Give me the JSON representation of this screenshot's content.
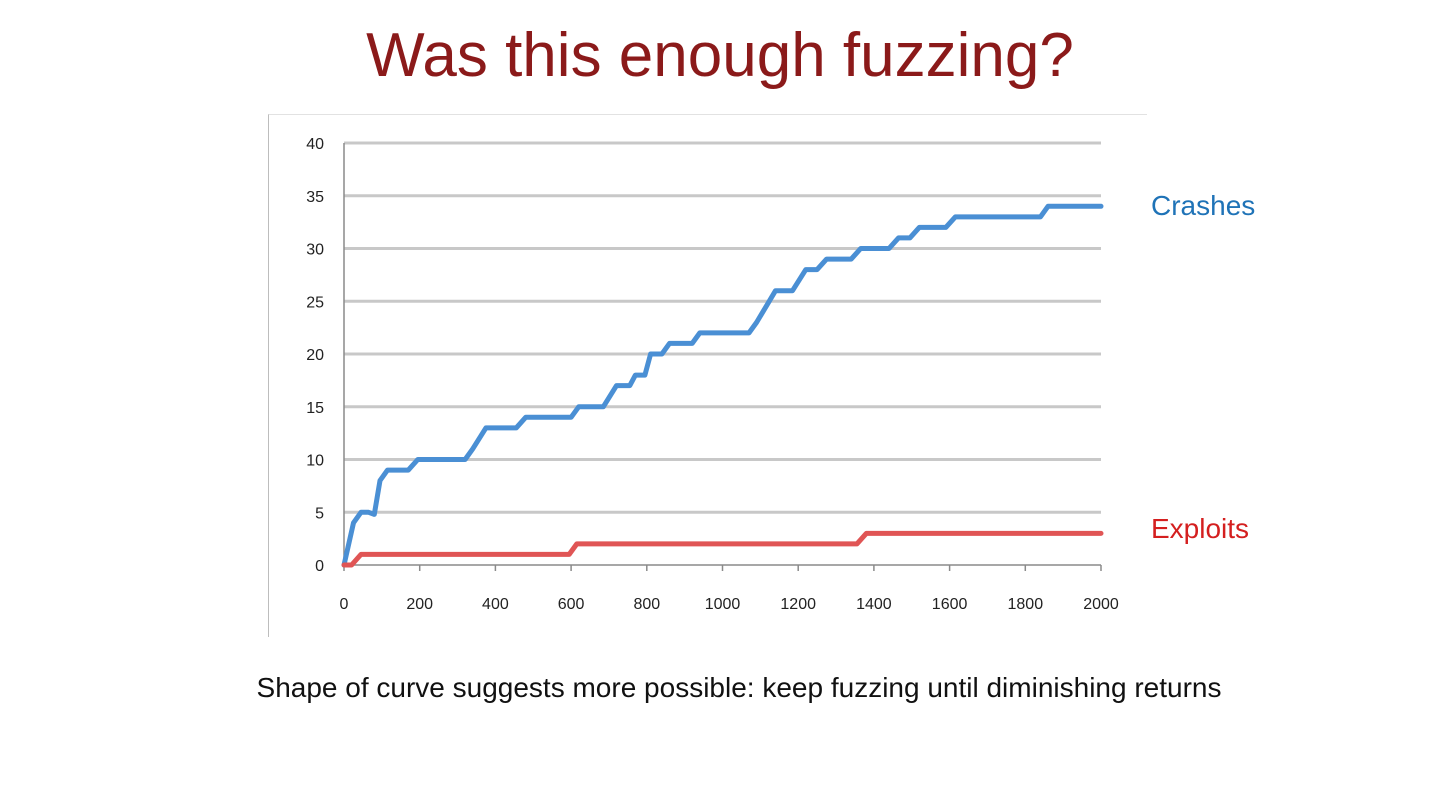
{
  "slide": {
    "title": "Was this enough fuzzing?",
    "caption": "Shape of curve suggests more possible: keep fuzzing until diminishing returns"
  },
  "chart_data": {
    "type": "line",
    "xlim": [
      0,
      2000
    ],
    "ylim": [
      0,
      40
    ],
    "x_ticks": [
      "0",
      "200",
      "400",
      "600",
      "800",
      "1000",
      "1200",
      "1400",
      "1600",
      "1800",
      "2000"
    ],
    "y_ticks": [
      "0",
      "5",
      "10",
      "15",
      "20",
      "25",
      "30",
      "35",
      "40"
    ],
    "grid": true,
    "legend_placement": "right",
    "series": [
      {
        "name": "Crashes",
        "color": "#4a8fd4",
        "label_color": "#1f73b7",
        "points": [
          [
            0,
            0
          ],
          [
            25,
            4
          ],
          [
            45,
            5
          ],
          [
            65,
            5
          ],
          [
            80,
            4.8
          ],
          [
            95,
            8
          ],
          [
            115,
            9
          ],
          [
            170,
            9
          ],
          [
            195,
            10
          ],
          [
            320,
            10
          ],
          [
            340,
            11
          ],
          [
            375,
            13
          ],
          [
            455,
            13
          ],
          [
            480,
            14
          ],
          [
            600,
            14
          ],
          [
            620,
            15
          ],
          [
            685,
            15
          ],
          [
            720,
            17
          ],
          [
            755,
            17
          ],
          [
            770,
            18
          ],
          [
            795,
            18
          ],
          [
            810,
            20
          ],
          [
            840,
            20
          ],
          [
            860,
            21
          ],
          [
            920,
            21
          ],
          [
            940,
            22
          ],
          [
            1070,
            22
          ],
          [
            1090,
            23
          ],
          [
            1140,
            26
          ],
          [
            1185,
            26
          ],
          [
            1220,
            28
          ],
          [
            1250,
            28
          ],
          [
            1275,
            29
          ],
          [
            1340,
            29
          ],
          [
            1365,
            30
          ],
          [
            1440,
            30
          ],
          [
            1465,
            31
          ],
          [
            1495,
            31
          ],
          [
            1520,
            32
          ],
          [
            1590,
            32
          ],
          [
            1615,
            33
          ],
          [
            1840,
            33
          ],
          [
            1860,
            34
          ],
          [
            2000,
            34
          ]
        ]
      },
      {
        "name": "Exploits",
        "color": "#e05555",
        "label_color": "#d41f1f",
        "points": [
          [
            0,
            0
          ],
          [
            20,
            0
          ],
          [
            45,
            1
          ],
          [
            595,
            1
          ],
          [
            615,
            2
          ],
          [
            1355,
            2
          ],
          [
            1380,
            3
          ],
          [
            2000,
            3
          ]
        ]
      }
    ]
  }
}
